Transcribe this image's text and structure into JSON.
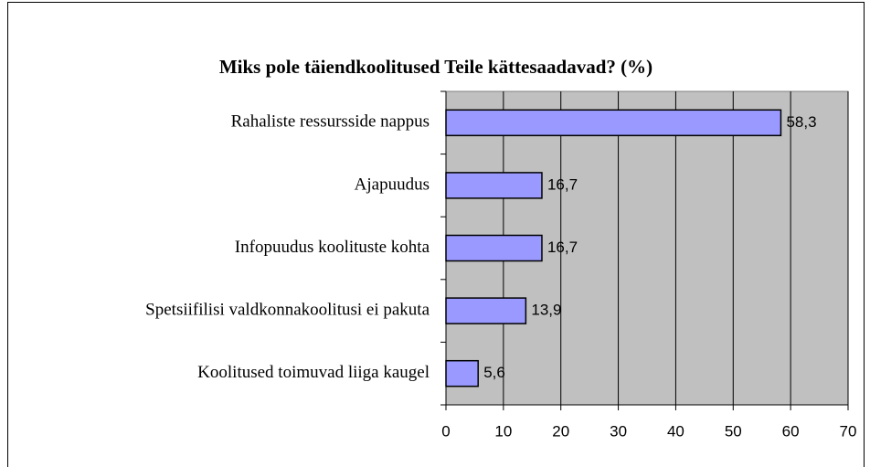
{
  "chart_data": {
    "type": "bar",
    "orientation": "horizontal",
    "title": "Miks pole täiendkoolitused Teile kättesaadavad? (%)",
    "categories": [
      "Rahaliste ressursside nappus",
      "Ajapuudus",
      "Infopuudus koolituste kohta",
      "Spetsiifilisi valdkonnakoolitusi ei pakuta",
      "Koolitused toimuvad liiga kaugel"
    ],
    "values": [
      58.3,
      16.7,
      16.7,
      13.9,
      5.6
    ],
    "value_labels": [
      "58,3",
      "16,7",
      "16,7",
      "13,9",
      "5,6"
    ],
    "color": "#9999ff",
    "xlim": [
      0,
      70
    ],
    "xticks": [
      0,
      10,
      20,
      30,
      40,
      50,
      60,
      70
    ],
    "grid": true
  }
}
